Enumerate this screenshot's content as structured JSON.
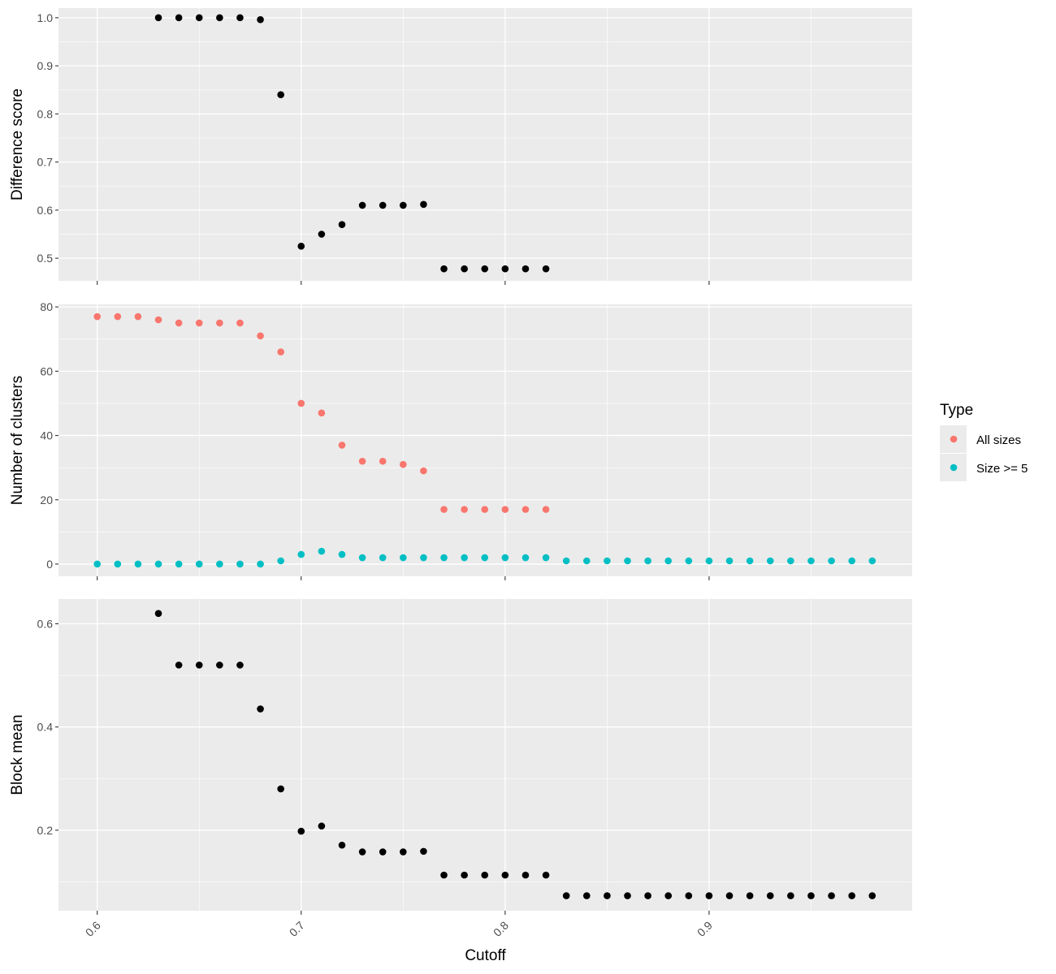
{
  "chart_data": {
    "type": "scatter",
    "xlabel": "Cutoff",
    "xlim": [
      0.581,
      0.9996
    ],
    "x_ticks": [
      0.6,
      0.7,
      0.8,
      0.9
    ],
    "x_tick_labels": [
      "0.6",
      "0.7",
      "0.8",
      "0.9"
    ],
    "grid": true,
    "legend": {
      "title": "Type",
      "placement": "right",
      "entries": [
        {
          "label": "All sizes",
          "color": "#F8766D"
        },
        {
          "label": "Size >= 5",
          "color": "#00BFC4"
        }
      ]
    },
    "panels": [
      {
        "ylabel": "Difference score",
        "ylim": [
          0.453,
          1.02
        ],
        "y_ticks": [
          0.5,
          0.6,
          0.7,
          0.8,
          0.9,
          1.0
        ],
        "y_tick_labels": [
          "0.5",
          "0.6",
          "0.7",
          "0.8",
          "0.9",
          "1.0"
        ],
        "series": [
          {
            "color": "#000000",
            "x": [
              0.63,
              0.64,
              0.65,
              0.66,
              0.67,
              0.68,
              0.69,
              0.7,
              0.71,
              0.72,
              0.73,
              0.74,
              0.75,
              0.76,
              0.77,
              0.78,
              0.79,
              0.8,
              0.81,
              0.82
            ],
            "y": [
              1.0,
              1.0,
              1.0,
              1.0,
              1.0,
              0.996,
              0.84,
              0.525,
              0.55,
              0.57,
              0.61,
              0.61,
              0.61,
              0.612,
              0.478,
              0.478,
              0.478,
              0.478,
              0.478,
              0.478
            ]
          }
        ]
      },
      {
        "ylabel": "Number of clusters",
        "ylim": [
          -3.8,
          80.8
        ],
        "y_ticks": [
          0,
          20,
          40,
          60,
          80
        ],
        "y_tick_labels": [
          "0",
          "20",
          "40",
          "60",
          "80"
        ],
        "series": [
          {
            "name": "All sizes",
            "color": "#F8766D",
            "x": [
              0.6,
              0.61,
              0.62,
              0.63,
              0.64,
              0.65,
              0.66,
              0.67,
              0.68,
              0.69,
              0.7,
              0.71,
              0.72,
              0.73,
              0.74,
              0.75,
              0.76,
              0.77,
              0.78,
              0.79,
              0.8,
              0.81,
              0.82
            ],
            "y": [
              77,
              77,
              77,
              76,
              75,
              75,
              75,
              75,
              71,
              66,
              50,
              47,
              37,
              32,
              32,
              31,
              29,
              17,
              17,
              17,
              17,
              17,
              17
            ]
          },
          {
            "name": "Size >= 5",
            "color": "#00BFC4",
            "x": [
              0.6,
              0.61,
              0.62,
              0.63,
              0.64,
              0.65,
              0.66,
              0.67,
              0.68,
              0.69,
              0.7,
              0.71,
              0.72,
              0.73,
              0.74,
              0.75,
              0.76,
              0.77,
              0.78,
              0.79,
              0.8,
              0.81,
              0.82,
              0.83,
              0.84,
              0.85,
              0.86,
              0.87,
              0.88,
              0.89,
              0.9,
              0.91,
              0.92,
              0.93,
              0.94,
              0.95,
              0.96,
              0.97,
              0.98
            ],
            "y": [
              0,
              0,
              0,
              0,
              0,
              0,
              0,
              0,
              0,
              1,
              3,
              4,
              3,
              2,
              2,
              2,
              2,
              2,
              2,
              2,
              2,
              2,
              2,
              1,
              1,
              1,
              1,
              1,
              1,
              1,
              1,
              1,
              1,
              1,
              1,
              1,
              1,
              1,
              1
            ]
          }
        ]
      },
      {
        "ylabel": "Block mean",
        "ylim": [
          0.044,
          0.648
        ],
        "y_ticks": [
          0.2,
          0.4,
          0.6
        ],
        "y_tick_labels": [
          "0.2",
          "0.4",
          "0.6"
        ],
        "series": [
          {
            "color": "#000000",
            "x": [
              0.63,
              0.64,
              0.65,
              0.66,
              0.67,
              0.68,
              0.69,
              0.7,
              0.71,
              0.72,
              0.73,
              0.74,
              0.75,
              0.76,
              0.77,
              0.78,
              0.79,
              0.8,
              0.81,
              0.82,
              0.83,
              0.84,
              0.85,
              0.86,
              0.87,
              0.88,
              0.89,
              0.9,
              0.91,
              0.92,
              0.93,
              0.94,
              0.95,
              0.96,
              0.97,
              0.98
            ],
            "y": [
              0.62,
              0.52,
              0.52,
              0.52,
              0.52,
              0.435,
              0.28,
              0.198,
              0.208,
              0.171,
              0.158,
              0.158,
              0.158,
              0.159,
              0.113,
              0.113,
              0.113,
              0.113,
              0.113,
              0.113,
              0.073,
              0.073,
              0.073,
              0.073,
              0.073,
              0.073,
              0.073,
              0.073,
              0.073,
              0.073,
              0.073,
              0.073,
              0.073,
              0.073,
              0.073,
              0.073
            ]
          }
        ]
      }
    ]
  }
}
